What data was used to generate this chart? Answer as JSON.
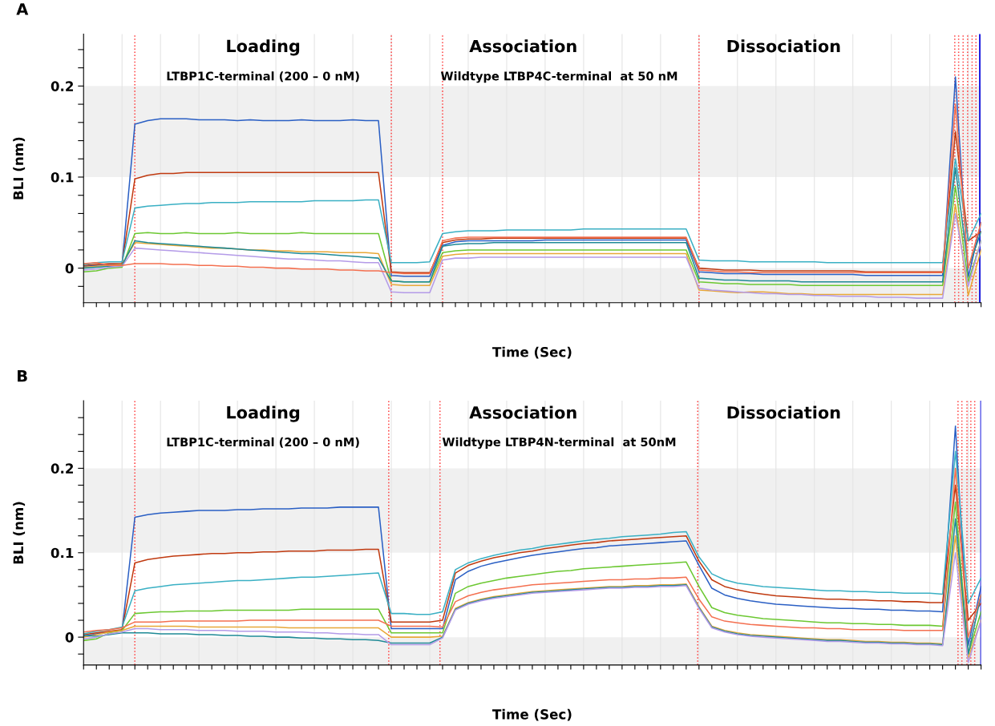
{
  "chart_data": [
    {
      "type": "line",
      "title": "A",
      "xlabel": "Time (Sec)",
      "ylabel": "BLI (nm)",
      "grid": "x",
      "annotations": [
        "Loading",
        "LTBP1C-terminal (200 – 0 nM)",
        "Association",
        "Wildtype LTBP4C-terminal  at 50 nM",
        "Dissociation"
      ],
      "categories": [
        null,
        null,
        null,
        null,
        null,
        null,
        null,
        null,
        null,
        null,
        null,
        null,
        null,
        null,
        null,
        null,
        null,
        null,
        null,
        null,
        null,
        null,
        null,
        null,
        null,
        null,
        null,
        null,
        null,
        null,
        null,
        null,
        null,
        null,
        null,
        null,
        null,
        null,
        null,
        null,
        null,
        null,
        null,
        null,
        null,
        null,
        null,
        null,
        null,
        null,
        null,
        null,
        null,
        null,
        null,
        null,
        null,
        null,
        null,
        null,
        null,
        null,
        null,
        null,
        null,
        null,
        null,
        null,
        null,
        null,
        null
      ],
      "ylim": [
        -0.038,
        0.257
      ],
      "yticks": [
        {
          "value": -0.02,
          "label": null
        },
        {
          "value": 0,
          "label": "0"
        },
        {
          "value": 0.02,
          "label": null
        },
        {
          "value": 0.04,
          "label": null
        },
        {
          "value": 0.06,
          "label": null
        },
        {
          "value": 0.08,
          "label": null
        },
        {
          "value": 0.1,
          "label": "0.1"
        },
        {
          "value": 0.12,
          "label": null
        },
        {
          "value": 0.14,
          "label": null
        },
        {
          "value": 0.16,
          "label": null
        },
        {
          "value": 0.18,
          "label": null
        },
        {
          "value": 0.2,
          "label": "0.2"
        },
        {
          "value": 0.22,
          "label": null
        },
        {
          "value": 0.24,
          "label": null
        }
      ],
      "bands": [
        {
          "axis": "y",
          "from": 0.1,
          "to": 0.2,
          "color": "#f0f0f0"
        },
        {
          "axis": "y",
          "from": -0.038,
          "to": 0,
          "color": "#f0f0f0"
        }
      ],
      "series": [
        {
          "color": "#2a5fc4",
          "values": [
            0.002,
            0.003,
            0.004,
            0.004,
            0.158,
            0.162,
            0.164,
            0.164,
            0.164,
            0.163,
            0.163,
            0.163,
            0.162,
            0.163,
            0.162,
            0.162,
            0.162,
            0.163,
            0.162,
            0.162,
            0.162,
            0.163,
            0.162,
            0.162,
            -0.008,
            -0.009,
            -0.009,
            -0.009,
            0.025,
            0.029,
            0.03,
            0.03,
            0.03,
            0.03,
            0.03,
            0.03,
            0.031,
            0.031,
            0.031,
            0.031,
            0.031,
            0.031,
            0.031,
            0.031,
            0.031,
            0.031,
            0.031,
            0.031,
            -0.004,
            -0.005,
            -0.006,
            -0.006,
            -0.006,
            -0.007,
            -0.007,
            -0.007,
            -0.007,
            -0.007,
            -0.007,
            -0.007,
            -0.007,
            -0.008,
            -0.008,
            -0.008,
            -0.008,
            -0.008,
            -0.008,
            -0.008,
            0.21,
            -0.01,
            0.05
          ]
        },
        {
          "color": "#c03a10",
          "values": [
            0.003,
            0.004,
            0.005,
            0.005,
            0.098,
            0.102,
            0.104,
            0.104,
            0.105,
            0.105,
            0.105,
            0.105,
            0.105,
            0.105,
            0.105,
            0.105,
            0.105,
            0.105,
            0.105,
            0.105,
            0.105,
            0.105,
            0.105,
            0.105,
            -0.004,
            -0.005,
            -0.005,
            -0.005,
            0.028,
            0.031,
            0.032,
            0.032,
            0.033,
            0.033,
            0.033,
            0.033,
            0.033,
            0.033,
            0.033,
            0.033,
            0.033,
            0.033,
            0.033,
            0.033,
            0.033,
            0.033,
            0.033,
            0.033,
            0.0,
            -0.001,
            -0.002,
            -0.002,
            -0.002,
            -0.003,
            -0.003,
            -0.003,
            -0.003,
            -0.003,
            -0.003,
            -0.003,
            -0.003,
            -0.004,
            -0.004,
            -0.004,
            -0.004,
            -0.004,
            -0.004,
            -0.004,
            0.15,
            0.03,
            0.04
          ]
        },
        {
          "color": "#3ab0c4",
          "values": [
            0.004,
            0.006,
            0.007,
            0.007,
            0.066,
            0.068,
            0.069,
            0.07,
            0.071,
            0.071,
            0.072,
            0.072,
            0.072,
            0.073,
            0.073,
            0.073,
            0.073,
            0.073,
            0.074,
            0.074,
            0.074,
            0.074,
            0.075,
            0.075,
            0.006,
            0.006,
            0.006,
            0.007,
            0.038,
            0.04,
            0.041,
            0.041,
            0.041,
            0.042,
            0.042,
            0.042,
            0.042,
            0.042,
            0.042,
            0.043,
            0.043,
            0.043,
            0.043,
            0.043,
            0.043,
            0.043,
            0.043,
            0.043,
            0.009,
            0.008,
            0.008,
            0.008,
            0.007,
            0.007,
            0.007,
            0.007,
            0.007,
            0.007,
            0.006,
            0.006,
            0.006,
            0.006,
            0.006,
            0.006,
            0.006,
            0.006,
            0.006,
            0.006,
            0.12,
            0.03,
            0.06
          ]
        },
        {
          "color": "#6cc832",
          "values": [
            -0.004,
            -0.003,
            0.0,
            0.001,
            0.038,
            0.039,
            0.038,
            0.038,
            0.039,
            0.038,
            0.038,
            0.038,
            0.039,
            0.038,
            0.038,
            0.038,
            0.038,
            0.039,
            0.038,
            0.038,
            0.038,
            0.038,
            0.038,
            0.038,
            -0.014,
            -0.015,
            -0.015,
            -0.015,
            0.017,
            0.019,
            0.02,
            0.02,
            0.02,
            0.02,
            0.02,
            0.02,
            0.02,
            0.02,
            0.02,
            0.02,
            0.02,
            0.02,
            0.02,
            0.02,
            0.02,
            0.02,
            0.02,
            0.02,
            -0.015,
            -0.016,
            -0.017,
            -0.017,
            -0.018,
            -0.018,
            -0.018,
            -0.018,
            -0.019,
            -0.019,
            -0.019,
            -0.019,
            -0.019,
            -0.019,
            -0.019,
            -0.019,
            -0.019,
            -0.019,
            -0.019,
            -0.019,
            0.09,
            -0.015,
            0.03
          ]
        },
        {
          "color": "#e8a838",
          "values": [
            0.001,
            0.002,
            0.003,
            0.004,
            0.028,
            0.027,
            0.026,
            0.025,
            0.024,
            0.023,
            0.022,
            0.022,
            0.021,
            0.02,
            0.02,
            0.019,
            0.019,
            0.018,
            0.018,
            0.018,
            0.017,
            0.017,
            0.017,
            0.016,
            -0.018,
            -0.019,
            -0.019,
            -0.019,
            0.013,
            0.015,
            0.016,
            0.016,
            0.016,
            0.016,
            0.016,
            0.016,
            0.016,
            0.016,
            0.016,
            0.016,
            0.016,
            0.016,
            0.016,
            0.016,
            0.016,
            0.016,
            0.016,
            0.016,
            -0.024,
            -0.025,
            -0.026,
            -0.027,
            -0.026,
            -0.026,
            -0.027,
            -0.028,
            -0.028,
            -0.029,
            -0.029,
            -0.029,
            -0.029,
            -0.029,
            -0.029,
            -0.029,
            -0.029,
            -0.029,
            -0.029,
            -0.029,
            0.07,
            -0.03,
            0.02
          ]
        },
        {
          "color": "#1f8a96",
          "values": [
            0.0,
            0.001,
            0.002,
            0.003,
            0.03,
            0.028,
            0.027,
            0.026,
            0.025,
            0.024,
            0.023,
            0.022,
            0.021,
            0.02,
            0.019,
            0.018,
            0.017,
            0.016,
            0.016,
            0.015,
            0.014,
            0.013,
            0.012,
            0.011,
            -0.014,
            -0.015,
            -0.015,
            -0.015,
            0.024,
            0.026,
            0.027,
            0.027,
            0.028,
            0.028,
            0.028,
            0.028,
            0.028,
            0.028,
            0.028,
            0.028,
            0.028,
            0.028,
            0.028,
            0.028,
            0.028,
            0.028,
            0.028,
            0.028,
            -0.011,
            -0.012,
            -0.013,
            -0.013,
            -0.014,
            -0.014,
            -0.014,
            -0.014,
            -0.015,
            -0.015,
            -0.015,
            -0.015,
            -0.015,
            -0.015,
            -0.015,
            -0.015,
            -0.015,
            -0.015,
            -0.015,
            -0.015,
            0.11,
            0.0,
            0.04
          ]
        },
        {
          "color": "#b49be8",
          "values": [
            -0.002,
            -0.001,
            0.001,
            0.002,
            0.022,
            0.021,
            0.02,
            0.019,
            0.018,
            0.017,
            0.016,
            0.015,
            0.014,
            0.013,
            0.012,
            0.011,
            0.01,
            0.01,
            0.009,
            0.008,
            0.008,
            0.007,
            0.006,
            0.006,
            -0.026,
            -0.027,
            -0.027,
            -0.027,
            0.009,
            0.011,
            0.011,
            0.012,
            0.012,
            0.012,
            0.012,
            0.012,
            0.012,
            0.012,
            0.012,
            0.012,
            0.012,
            0.012,
            0.012,
            0.012,
            0.012,
            0.012,
            0.012,
            0.012,
            -0.022,
            -0.024,
            -0.025,
            -0.026,
            -0.027,
            -0.028,
            -0.028,
            -0.029,
            -0.029,
            -0.03,
            -0.03,
            -0.031,
            -0.031,
            -0.031,
            -0.032,
            -0.032,
            -0.032,
            -0.033,
            -0.033,
            -0.033,
            0.06,
            -0.02,
            0.03
          ]
        },
        {
          "color": "#f47050",
          "values": [
            0.005,
            0.006,
            0.003,
            0.003,
            0.005,
            0.005,
            0.005,
            0.004,
            0.004,
            0.003,
            0.003,
            0.002,
            0.002,
            0.001,
            0.001,
            0.0,
            0.0,
            -0.001,
            -0.001,
            -0.001,
            -0.002,
            -0.002,
            -0.003,
            -0.003,
            -0.005,
            -0.006,
            -0.006,
            -0.006,
            0.03,
            0.033,
            0.034,
            0.034,
            0.034,
            0.034,
            0.034,
            0.034,
            0.034,
            0.034,
            0.034,
            0.034,
            0.034,
            0.034,
            0.034,
            0.034,
            0.034,
            0.034,
            0.034,
            0.034,
            -0.002,
            -0.003,
            -0.004,
            -0.004,
            -0.005,
            -0.005,
            -0.005,
            -0.005,
            -0.005,
            -0.005,
            -0.005,
            -0.005,
            -0.005,
            -0.005,
            -0.005,
            -0.005,
            -0.005,
            -0.005,
            -0.005,
            -0.005,
            0.18,
            0.0,
            0.05
          ]
        }
      ]
    },
    {
      "type": "line",
      "title": "B",
      "xlabel": "Time (Sec)",
      "ylabel": "BLI (nm)",
      "grid": "x",
      "annotations": [
        "Loading",
        "LTBP1C-terminal (200 – 0 nM)",
        "Association",
        "Wildtype LTBP4N-terminal  at 50nM",
        "Dissociation"
      ],
      "categories": [
        null,
        null,
        null,
        null,
        null,
        null,
        null,
        null,
        null,
        null,
        null,
        null,
        null,
        null,
        null,
        null,
        null,
        null,
        null,
        null,
        null,
        null,
        null,
        null,
        null,
        null,
        null,
        null,
        null,
        null,
        null,
        null,
        null,
        null,
        null,
        null,
        null,
        null,
        null,
        null,
        null,
        null,
        null,
        null,
        null,
        null,
        null,
        null,
        null,
        null,
        null,
        null,
        null,
        null,
        null,
        null,
        null,
        null,
        null,
        null,
        null,
        null,
        null,
        null,
        null,
        null,
        null,
        null,
        null,
        null,
        null
      ],
      "ylim": [
        -0.033,
        0.28
      ],
      "yticks": [
        {
          "value": -0.02,
          "label": null
        },
        {
          "value": 0,
          "label": "0"
        },
        {
          "value": 0.02,
          "label": null
        },
        {
          "value": 0.04,
          "label": null
        },
        {
          "value": 0.06,
          "label": null
        },
        {
          "value": 0.08,
          "label": null
        },
        {
          "value": 0.1,
          "label": "0.1"
        },
        {
          "value": 0.12,
          "label": null
        },
        {
          "value": 0.14,
          "label": null
        },
        {
          "value": 0.16,
          "label": null
        },
        {
          "value": 0.18,
          "label": null
        },
        {
          "value": 0.2,
          "label": "0.2"
        },
        {
          "value": 0.22,
          "label": null
        },
        {
          "value": 0.24,
          "label": null
        },
        {
          "value": 0.26,
          "label": null
        }
      ],
      "bands": [
        {
          "axis": "y",
          "from": 0.1,
          "to": 0.2,
          "color": "#f0f0f0"
        },
        {
          "axis": "y",
          "from": -0.033,
          "to": 0,
          "color": "#f0f0f0"
        }
      ],
      "series": [
        {
          "color": "#2a5fc4",
          "values": [
            0.001,
            0.004,
            0.006,
            0.008,
            0.142,
            0.145,
            0.147,
            0.148,
            0.149,
            0.15,
            0.15,
            0.15,
            0.151,
            0.151,
            0.152,
            0.152,
            0.152,
            0.153,
            0.153,
            0.153,
            0.154,
            0.154,
            0.154,
            0.154,
            0.01,
            0.01,
            0.01,
            0.01,
            0.01,
            0.068,
            0.078,
            0.084,
            0.088,
            0.091,
            0.094,
            0.097,
            0.099,
            0.101,
            0.103,
            0.105,
            0.106,
            0.108,
            0.109,
            0.11,
            0.111,
            0.112,
            0.113,
            0.114,
            0.085,
            0.058,
            0.05,
            0.046,
            0.043,
            0.041,
            0.039,
            0.038,
            0.037,
            0.036,
            0.035,
            0.034,
            0.034,
            0.033,
            0.033,
            0.032,
            0.032,
            0.031,
            0.031,
            0.03,
            0.25,
            -0.01,
            0.06
          ]
        },
        {
          "color": "#c03a10",
          "values": [
            0.003,
            0.005,
            0.007,
            0.009,
            0.088,
            0.092,
            0.094,
            0.096,
            0.097,
            0.098,
            0.099,
            0.099,
            0.1,
            0.1,
            0.101,
            0.101,
            0.102,
            0.102,
            0.102,
            0.103,
            0.103,
            0.103,
            0.104,
            0.104,
            0.018,
            0.018,
            0.018,
            0.018,
            0.02,
            0.076,
            0.085,
            0.09,
            0.094,
            0.097,
            0.1,
            0.102,
            0.105,
            0.107,
            0.109,
            0.111,
            0.112,
            0.114,
            0.115,
            0.116,
            0.117,
            0.118,
            0.119,
            0.12,
            0.09,
            0.068,
            0.06,
            0.056,
            0.053,
            0.051,
            0.049,
            0.048,
            0.047,
            0.046,
            0.045,
            0.045,
            0.044,
            0.044,
            0.043,
            0.043,
            0.042,
            0.042,
            0.041,
            0.041,
            0.18,
            0.02,
            0.04
          ]
        },
        {
          "color": "#3ab0c4",
          "values": [
            0.004,
            0.007,
            0.009,
            0.012,
            0.055,
            0.058,
            0.06,
            0.062,
            0.063,
            0.064,
            0.065,
            0.066,
            0.067,
            0.067,
            0.068,
            0.069,
            0.07,
            0.071,
            0.071,
            0.072,
            0.073,
            0.074,
            0.075,
            0.076,
            0.028,
            0.028,
            0.027,
            0.027,
            0.03,
            0.08,
            0.088,
            0.093,
            0.097,
            0.1,
            0.103,
            0.105,
            0.108,
            0.11,
            0.112,
            0.114,
            0.116,
            0.117,
            0.119,
            0.12,
            0.121,
            0.122,
            0.124,
            0.125,
            0.095,
            0.075,
            0.068,
            0.064,
            0.062,
            0.06,
            0.059,
            0.058,
            0.057,
            0.056,
            0.055,
            0.055,
            0.054,
            0.054,
            0.053,
            0.053,
            0.052,
            0.052,
            0.052,
            0.051,
            0.22,
            0.04,
            0.07
          ]
        },
        {
          "color": "#6cc832",
          "values": [
            -0.004,
            -0.002,
            0.005,
            0.008,
            0.028,
            0.029,
            0.03,
            0.03,
            0.031,
            0.031,
            0.031,
            0.032,
            0.032,
            0.032,
            0.032,
            0.032,
            0.032,
            0.033,
            0.033,
            0.033,
            0.033,
            0.033,
            0.033,
            0.033,
            0.005,
            0.005,
            0.005,
            0.005,
            0.005,
            0.052,
            0.06,
            0.064,
            0.067,
            0.07,
            0.072,
            0.074,
            0.076,
            0.078,
            0.079,
            0.081,
            0.082,
            0.083,
            0.084,
            0.085,
            0.086,
            0.087,
            0.088,
            0.089,
            0.06,
            0.035,
            0.029,
            0.026,
            0.024,
            0.022,
            0.021,
            0.02,
            0.019,
            0.018,
            0.017,
            0.017,
            0.016,
            0.016,
            0.015,
            0.015,
            0.014,
            0.014,
            0.014,
            0.013,
            0.16,
            -0.02,
            0.03
          ]
        },
        {
          "color": "#e8a838",
          "values": [
            0.0,
            0.003,
            0.006,
            0.008,
            0.013,
            0.013,
            0.013,
            0.013,
            0.013,
            0.012,
            0.012,
            0.012,
            0.012,
            0.012,
            0.012,
            0.012,
            0.011,
            0.011,
            0.011,
            0.011,
            0.011,
            0.011,
            0.011,
            0.011,
            0.0,
            0.0,
            0.0,
            0.0,
            0.001,
            0.034,
            0.041,
            0.045,
            0.048,
            0.05,
            0.052,
            0.054,
            0.055,
            0.056,
            0.057,
            0.058,
            0.059,
            0.06,
            0.06,
            0.061,
            0.061,
            0.062,
            0.062,
            0.063,
            0.036,
            0.013,
            0.008,
            0.005,
            0.003,
            0.002,
            0.001,
            0.0,
            -0.001,
            -0.002,
            -0.003,
            -0.003,
            -0.004,
            -0.005,
            -0.005,
            -0.006,
            -0.006,
            -0.007,
            -0.007,
            -0.008,
            0.12,
            -0.025,
            0.02
          ]
        },
        {
          "color": "#1f8a96",
          "values": [
            0.002,
            0.001,
            0.003,
            0.005,
            0.005,
            0.005,
            0.004,
            0.004,
            0.004,
            0.003,
            0.003,
            0.002,
            0.002,
            0.001,
            0.001,
            0.0,
            0.0,
            -0.001,
            -0.001,
            -0.002,
            -0.002,
            -0.003,
            -0.003,
            -0.004,
            -0.007,
            -0.007,
            -0.007,
            -0.007,
            0.0,
            0.033,
            0.04,
            0.044,
            0.047,
            0.049,
            0.051,
            0.053,
            0.054,
            0.055,
            0.056,
            0.057,
            0.058,
            0.059,
            0.059,
            0.06,
            0.06,
            0.061,
            0.061,
            0.062,
            0.035,
            0.012,
            0.007,
            0.004,
            0.002,
            0.001,
            0.0,
            -0.001,
            -0.002,
            -0.003,
            -0.004,
            -0.004,
            -0.005,
            -0.006,
            -0.006,
            -0.007,
            -0.007,
            -0.008,
            -0.008,
            -0.009,
            0.14,
            -0.02,
            0.05
          ]
        },
        {
          "color": "#b49be8",
          "values": [
            -0.002,
            0.0,
            0.004,
            0.006,
            0.01,
            0.01,
            0.009,
            0.009,
            0.009,
            0.008,
            0.008,
            0.008,
            0.007,
            0.007,
            0.007,
            0.006,
            0.006,
            0.006,
            0.005,
            0.005,
            0.004,
            0.004,
            0.003,
            0.003,
            -0.009,
            -0.009,
            -0.009,
            -0.009,
            -0.001,
            0.032,
            0.039,
            0.043,
            0.046,
            0.048,
            0.05,
            0.052,
            0.053,
            0.054,
            0.055,
            0.056,
            0.057,
            0.058,
            0.058,
            0.059,
            0.059,
            0.06,
            0.06,
            0.061,
            0.034,
            0.011,
            0.006,
            0.003,
            0.001,
            0.0,
            -0.001,
            -0.002,
            -0.003,
            -0.004,
            -0.005,
            -0.005,
            -0.006,
            -0.007,
            -0.007,
            -0.008,
            -0.008,
            -0.009,
            -0.009,
            -0.01,
            0.1,
            -0.03,
            0.02
          ]
        },
        {
          "color": "#f47050",
          "values": [
            0.006,
            0.008,
            0.009,
            0.011,
            0.018,
            0.018,
            0.018,
            0.019,
            0.019,
            0.019,
            0.019,
            0.019,
            0.019,
            0.02,
            0.02,
            0.02,
            0.02,
            0.02,
            0.02,
            0.02,
            0.02,
            0.02,
            0.02,
            0.02,
            0.013,
            0.013,
            0.013,
            0.013,
            0.012,
            0.042,
            0.049,
            0.053,
            0.056,
            0.058,
            0.06,
            0.062,
            0.063,
            0.064,
            0.065,
            0.066,
            0.067,
            0.068,
            0.068,
            0.069,
            0.069,
            0.07,
            0.07,
            0.071,
            0.045,
            0.024,
            0.019,
            0.017,
            0.015,
            0.014,
            0.013,
            0.012,
            0.011,
            0.011,
            0.01,
            0.01,
            0.009,
            0.009,
            0.009,
            0.009,
            0.008,
            0.008,
            0.008,
            0.008,
            0.2,
            0.0,
            0.05
          ]
        }
      ]
    }
  ]
}
